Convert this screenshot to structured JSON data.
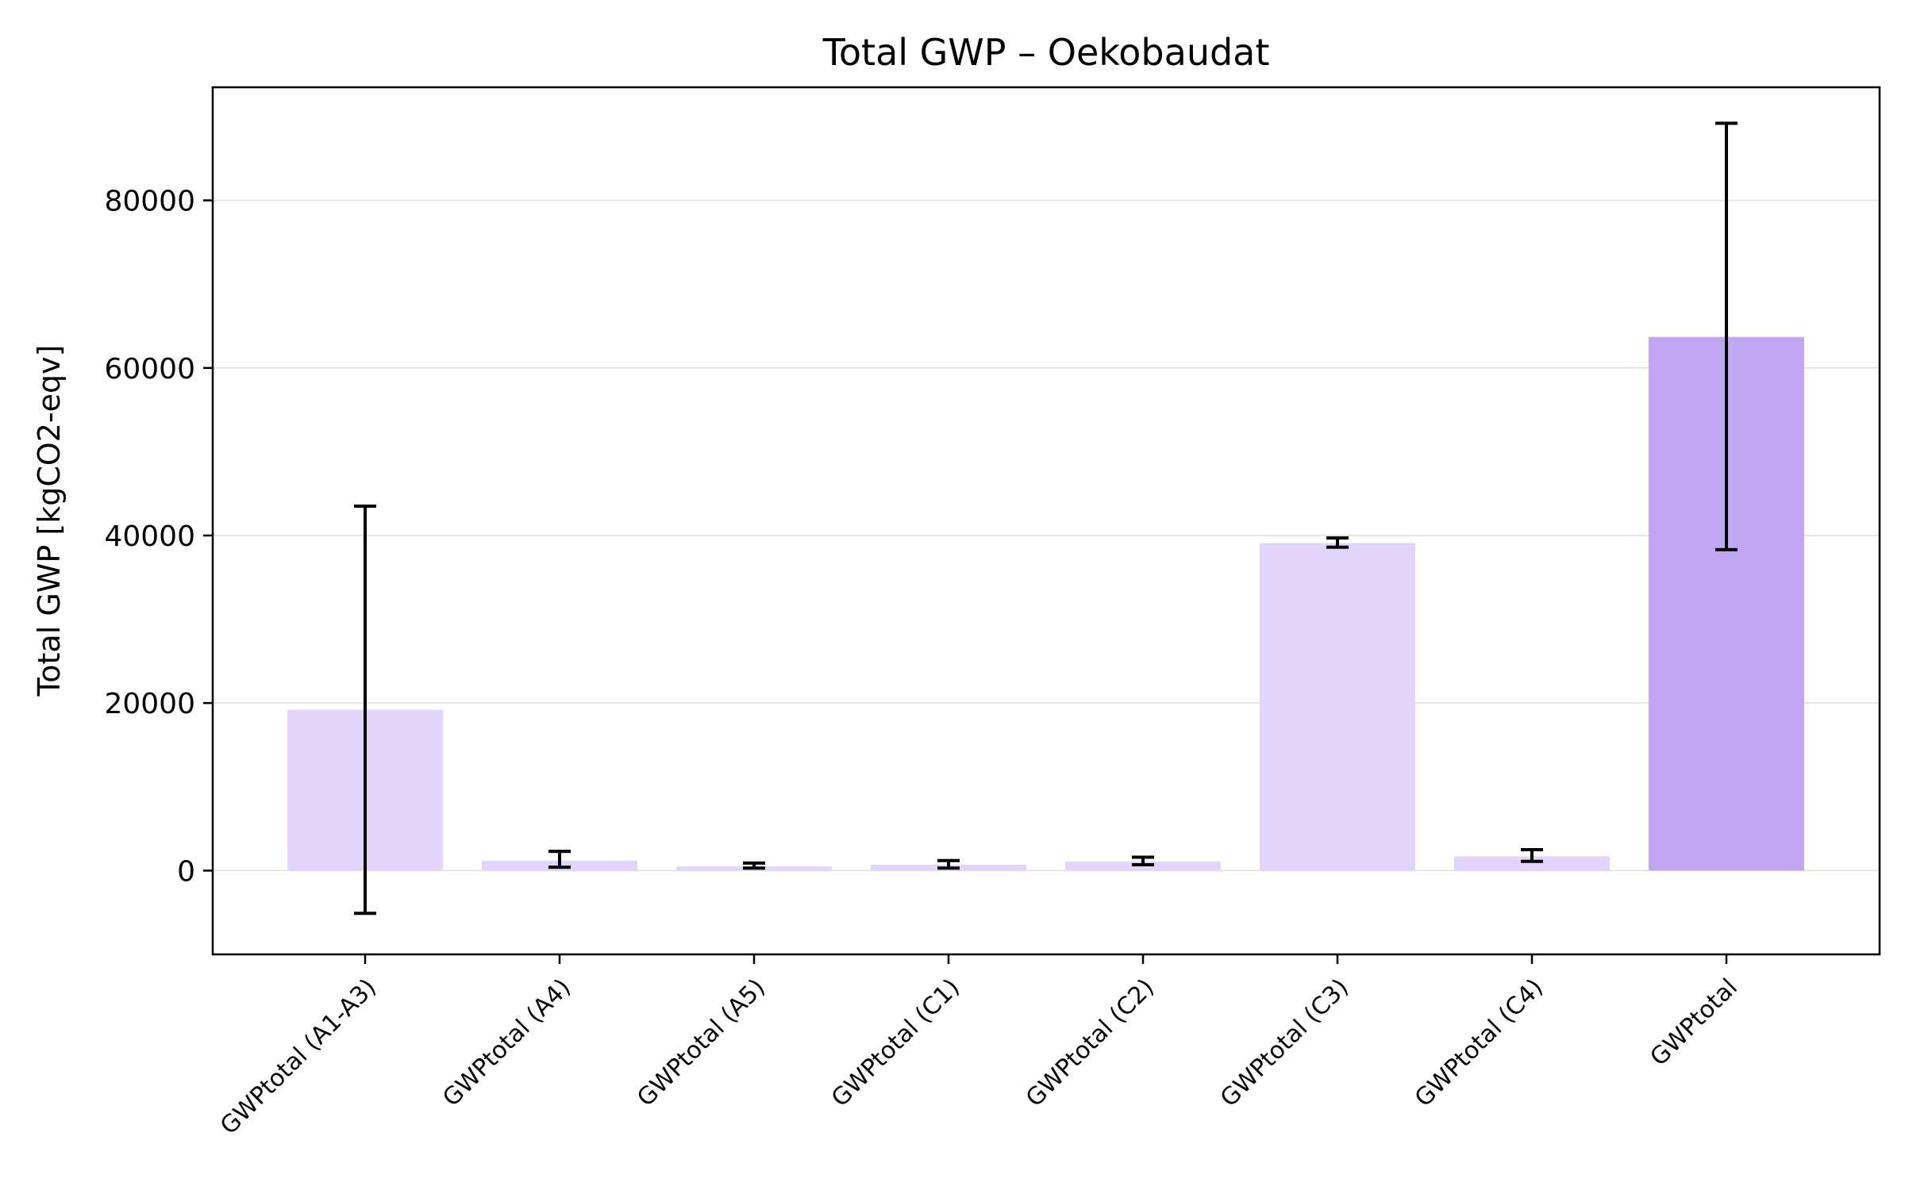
{
  "chart_data": {
    "type": "bar",
    "title": "Total GWP – Oekobaudat",
    "xlabel": "",
    "ylabel": "Total GWP [kgCO2-eqv]",
    "ylim": [
      -10000,
      93500
    ],
    "yticks": [
      0,
      20000,
      40000,
      60000,
      80000
    ],
    "ytick_labels": [
      "0",
      "20000",
      "40000",
      "60000",
      "80000"
    ],
    "grid": "horizontal",
    "categories": [
      "GWPtotal (A1-A3)",
      "GWPtotal (A4)",
      "GWPtotal (A5)",
      "GWPtotal (C1)",
      "GWPtotal (C2)",
      "GWPtotal (C3)",
      "GWPtotal (C4)",
      "GWPtotal"
    ],
    "values": [
      19200,
      1200,
      500,
      700,
      1100,
      39100,
      1700,
      63700
    ],
    "error_low": [
      -5100,
      400,
      300,
      300,
      700,
      38600,
      1100,
      38300
    ],
    "error_high": [
      43500,
      2300,
      900,
      1200,
      1600,
      39700,
      2500,
      89200
    ],
    "colors": [
      "#e2d4fb",
      "#e2d4fb",
      "#e2d4fb",
      "#e2d4fb",
      "#e2d4fb",
      "#e2d4fb",
      "#e2d4fb",
      "#c1a6f2"
    ]
  }
}
